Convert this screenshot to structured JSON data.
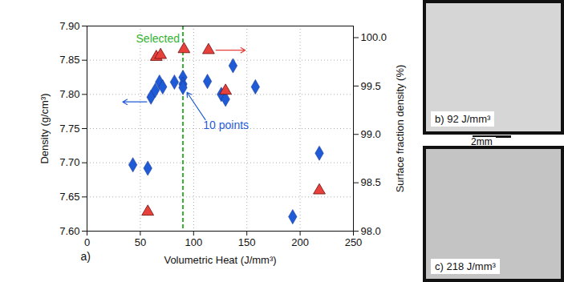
{
  "chart_data": {
    "type": "scatter",
    "xlabel": "Volumetric Heat (J/mm³)",
    "ylabel": "Density (g/cm³)",
    "y2label": "Surface fraction density (%)",
    "panel_label": "a)",
    "xlim": [
      0,
      250
    ],
    "xticks": [
      0,
      50,
      100,
      150,
      200,
      250
    ],
    "ylim": [
      7.6,
      7.9
    ],
    "yticks": [
      {
        "value": 7.6,
        "label": "7.60"
      },
      7.65,
      {
        "value": 7.7,
        "label": "7.70"
      },
      7.75,
      {
        "value": 7.8,
        "label": "7.80"
      },
      7.85,
      {
        "value": 7.9,
        "label": "7.90"
      }
    ],
    "y2lim": [
      98.0,
      100.12
    ],
    "y2ticks": [
      {
        "value": 98,
        "label": "98.0"
      },
      98.5,
      {
        "value": 99,
        "label": "99.0"
      },
      99.5,
      {
        "value": 100,
        "label": "100.0"
      }
    ],
    "grid": true,
    "series": [
      {
        "color": "#1f5bd6",
        "marker": "diamond",
        "x": [
          43,
          57,
          60,
          64,
          68,
          71,
          82,
          90,
          90,
          90,
          113,
          126,
          130,
          137,
          158,
          193,
          218
        ],
        "values": [
          7.697,
          7.692,
          7.796,
          7.806,
          7.818,
          7.811,
          7.818,
          7.825,
          7.815,
          7.81,
          7.819,
          7.8,
          7.793,
          7.842,
          7.811,
          7.621,
          7.714
        ]
      },
      {
        "color": "#e8413c",
        "marker": "triangle",
        "axis": "y2",
        "x": [
          57,
          65,
          69,
          91,
          114,
          130,
          218
        ],
        "values": [
          98.2,
          99.8,
          99.82,
          99.88,
          99.87,
          99.45,
          98.42
        ]
      }
    ],
    "annotations": [
      {
        "type": "vline",
        "x": 90,
        "text": "Selected",
        "color": "#33b233",
        "line_style": "dashed"
      },
      {
        "type": "arrow",
        "text": "10 points",
        "x": 112,
        "y": 7.755,
        "x_to": 93,
        "y_to": 7.805,
        "color": "#1f5bd6"
      },
      {
        "type": "arrow",
        "x": 56,
        "y": 7.789,
        "x_to": 32,
        "y_to": 7.789,
        "color": "#1f5bd6"
      },
      {
        "type": "arrow",
        "axis": "y2",
        "x": 121,
        "y": 99.87,
        "x_to": 150,
        "y_to": 99.87,
        "color": "#e8413c"
      }
    ]
  },
  "images": [
    {
      "label": "b) 92 J/mm³"
    },
    {
      "label": "c) 218 J/mm³"
    }
  ],
  "scale_bar": "2mm"
}
